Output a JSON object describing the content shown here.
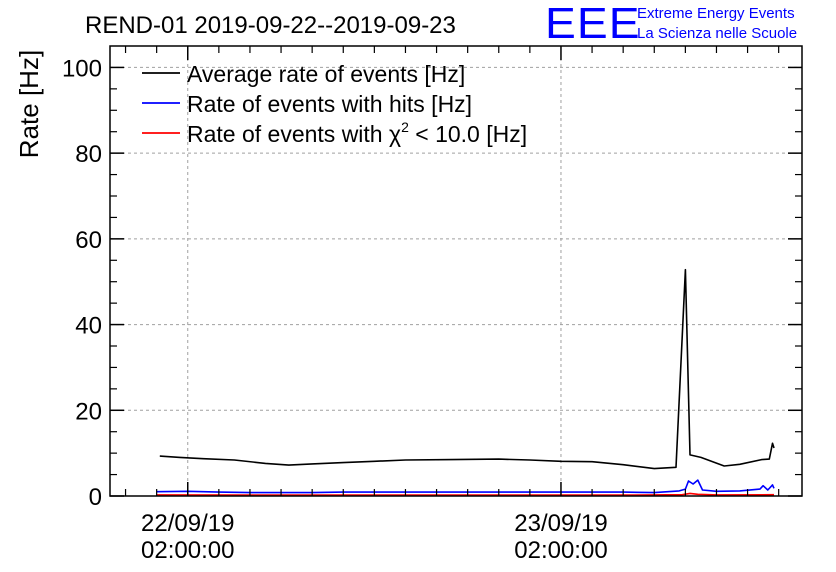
{
  "logo": {
    "mark": "EEE",
    "line1": "Extreme Energy Events",
    "line2": "La Scienza nelle Scuole"
  },
  "chart_data": {
    "type": "line",
    "title": "REND-01 2019-09-22--2019-09-23",
    "ylabel": "Rate [Hz]",
    "xlabel": "",
    "x_unit": "hours since 2019-09-21 00:00 (display time)",
    "xlim": [
      21.0,
      65.5
    ],
    "ylim": [
      0,
      105
    ],
    "yticks": [
      0,
      20,
      40,
      60,
      80,
      100
    ],
    "xticks": [
      {
        "x": 26,
        "label1": "22/09/19",
        "label2": "02:00:00"
      },
      {
        "x": 50,
        "label1": "23/09/19",
        "label2": "02:00:00"
      }
    ],
    "grid": true,
    "legend_position": "top-left",
    "series": [
      {
        "name": "Average rate of events [Hz]",
        "color": "#000000",
        "points": [
          [
            24.2,
            9.3
          ],
          [
            25.5,
            9.0
          ],
          [
            27.0,
            8.7
          ],
          [
            29.0,
            8.4
          ],
          [
            31.0,
            7.6
          ],
          [
            32.5,
            7.2
          ],
          [
            34.0,
            7.5
          ],
          [
            36.0,
            7.8
          ],
          [
            38.0,
            8.1
          ],
          [
            40.0,
            8.4
          ],
          [
            43.0,
            8.5
          ],
          [
            46.0,
            8.6
          ],
          [
            48.0,
            8.4
          ],
          [
            50.0,
            8.1
          ],
          [
            52.0,
            8.0
          ],
          [
            54.0,
            7.3
          ],
          [
            56.0,
            6.4
          ],
          [
            57.4,
            6.7
          ],
          [
            58.0,
            52.8
          ],
          [
            58.3,
            9.6
          ],
          [
            59.0,
            9.0
          ],
          [
            60.5,
            7.0
          ],
          [
            61.5,
            7.4
          ],
          [
            62.9,
            8.5
          ],
          [
            63.4,
            8.6
          ],
          [
            63.6,
            12.3
          ],
          [
            63.7,
            11.2
          ]
        ]
      },
      {
        "name": "Rate of events with hits [Hz]",
        "color": "#0000ff",
        "points": [
          [
            24.0,
            1.0
          ],
          [
            26.0,
            1.1
          ],
          [
            28.0,
            0.9
          ],
          [
            30.0,
            0.8
          ],
          [
            32.0,
            0.8
          ],
          [
            34.0,
            0.8
          ],
          [
            36.0,
            0.9
          ],
          [
            38.0,
            0.9
          ],
          [
            40.0,
            0.9
          ],
          [
            42.0,
            0.9
          ],
          [
            44.0,
            0.9
          ],
          [
            46.0,
            0.9
          ],
          [
            48.0,
            0.9
          ],
          [
            50.0,
            0.9
          ],
          [
            52.0,
            0.9
          ],
          [
            54.0,
            0.9
          ],
          [
            56.0,
            0.8
          ],
          [
            57.6,
            1.2
          ],
          [
            58.0,
            1.6
          ],
          [
            58.2,
            3.5
          ],
          [
            58.5,
            2.8
          ],
          [
            58.8,
            3.7
          ],
          [
            59.1,
            1.4
          ],
          [
            60.0,
            1.1
          ],
          [
            61.5,
            1.2
          ],
          [
            62.8,
            1.6
          ],
          [
            63.0,
            2.4
          ],
          [
            63.3,
            1.4
          ],
          [
            63.6,
            2.6
          ],
          [
            63.7,
            1.8
          ]
        ]
      },
      {
        "name": "Rate of events with χ² < 10.0 [Hz]",
        "color": "#ff0000",
        "points": [
          [
            24.0,
            0.25
          ],
          [
            30.0,
            0.2
          ],
          [
            36.0,
            0.2
          ],
          [
            42.0,
            0.2
          ],
          [
            48.0,
            0.2
          ],
          [
            54.0,
            0.2
          ],
          [
            57.8,
            0.3
          ],
          [
            58.3,
            0.6
          ],
          [
            58.8,
            0.4
          ],
          [
            60.0,
            0.25
          ],
          [
            63.7,
            0.3
          ]
        ]
      }
    ]
  }
}
